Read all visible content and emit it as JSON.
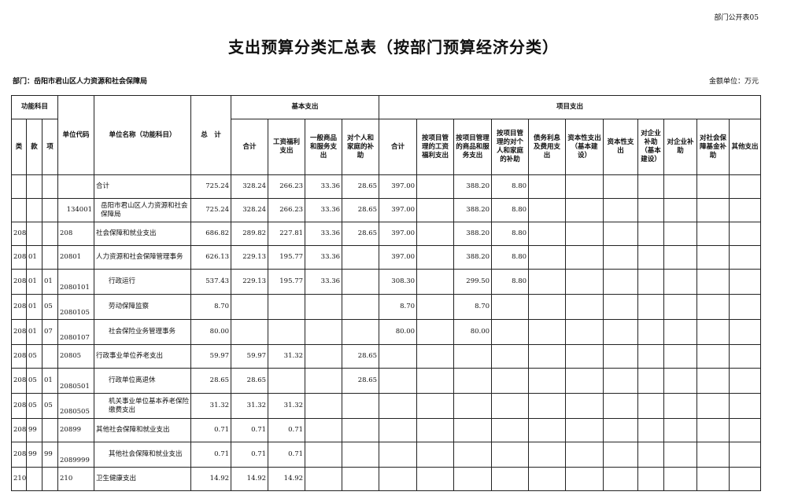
{
  "tag": "部门公开表05",
  "title": "支出预算分类汇总表（按部门预算经济分类）",
  "dept": "部门：岳阳市君山区人力资源和社会保障局",
  "unit": "金额单位：万元",
  "headers": {
    "func": "功能科目",
    "lei": "类",
    "kuan": "款",
    "xiang": "项",
    "code": "单位代码",
    "name": "单位名称（功能科目）",
    "total": "总　计",
    "basic": "基本支出",
    "project": "项目支出",
    "basic_cols": [
      "合计",
      "工资福利支出",
      "一般商品和服务支出",
      "对个人和家庭的补助"
    ],
    "project_cols": [
      "合计",
      "按项目管理的工资福利支出",
      "按项目管理的商品和服务支出",
      "按项目管理的对个人和家庭的补助",
      "债务利息及费用支出",
      "资本性支出（基本建设）",
      "资本性支出",
      "对企业补助（基本建设）",
      "对企业补助",
      "对社会保障基金补助",
      "其他支出"
    ]
  },
  "rows": [
    {
      "lei": "",
      "kuan": "",
      "xiang": "",
      "code": "",
      "name": "合计",
      "values": [
        "725.24",
        "328.24",
        "266.23",
        "33.36",
        "28.65",
        "397.00",
        "",
        "388.20",
        "8.80",
        "",
        "",
        "",
        "",
        "",
        "",
        ""
      ]
    },
    {
      "lei": "",
      "kuan": "",
      "xiang": "",
      "code": "134001",
      "name": "岳阳市君山区人力资源和社会保障局",
      "values": [
        "725.24",
        "328.24",
        "266.23",
        "33.36",
        "28.65",
        "397.00",
        "",
        "388.20",
        "8.80",
        "",
        "",
        "",
        "",
        "",
        "",
        ""
      ]
    },
    {
      "lei": "208",
      "kuan": "",
      "xiang": "",
      "code": "208",
      "name": "社会保障和就业支出",
      "values": [
        "686.82",
        "289.82",
        "227.81",
        "33.36",
        "28.65",
        "397.00",
        "",
        "388.20",
        "8.80",
        "",
        "",
        "",
        "",
        "",
        "",
        ""
      ]
    },
    {
      "lei": "208",
      "kuan": "01",
      "xiang": "",
      "code": "20801",
      "name": "人力资源和社会保障管理事务",
      "values": [
        "626.13",
        "229.13",
        "195.77",
        "33.36",
        "",
        "397.00",
        "",
        "388.20",
        "8.80",
        "",
        "",
        "",
        "",
        "",
        "",
        ""
      ]
    },
    {
      "lei": "208",
      "kuan": "01",
      "xiang": "01",
      "code": "2080101",
      "name": "行政运行",
      "values": [
        "537.43",
        "229.13",
        "195.77",
        "33.36",
        "",
        "308.30",
        "",
        "299.50",
        "8.80",
        "",
        "",
        "",
        "",
        "",
        "",
        ""
      ]
    },
    {
      "lei": "208",
      "kuan": "01",
      "xiang": "05",
      "code": "2080105",
      "name": "劳动保障监察",
      "values": [
        "8.70",
        "",
        "",
        "",
        "",
        "8.70",
        "",
        "8.70",
        "",
        "",
        "",
        "",
        "",
        "",
        "",
        ""
      ]
    },
    {
      "lei": "208",
      "kuan": "01",
      "xiang": "07",
      "code": "2080107",
      "name": "社会保险业务管理事务",
      "values": [
        "80.00",
        "",
        "",
        "",
        "",
        "80.00",
        "",
        "80.00",
        "",
        "",
        "",
        "",
        "",
        "",
        "",
        ""
      ]
    },
    {
      "lei": "208",
      "kuan": "05",
      "xiang": "",
      "code": "20805",
      "name": "行政事业单位养老支出",
      "values": [
        "59.97",
        "59.97",
        "31.32",
        "",
        "28.65",
        "",
        "",
        "",
        "",
        "",
        "",
        "",
        "",
        "",
        "",
        ""
      ]
    },
    {
      "lei": "208",
      "kuan": "05",
      "xiang": "01",
      "code": "2080501",
      "name": "行政单位离退休",
      "values": [
        "28.65",
        "28.65",
        "",
        "",
        "28.65",
        "",
        "",
        "",
        "",
        "",
        "",
        "",
        "",
        "",
        "",
        ""
      ]
    },
    {
      "lei": "208",
      "kuan": "05",
      "xiang": "05",
      "code": "2080505",
      "name": "机关事业单位基本养老保险缴费支出",
      "values": [
        "31.32",
        "31.32",
        "31.32",
        "",
        "",
        "",
        "",
        "",
        "",
        "",
        "",
        "",
        "",
        "",
        "",
        ""
      ]
    },
    {
      "lei": "208",
      "kuan": "99",
      "xiang": "",
      "code": "20899",
      "name": "其他社会保障和就业支出",
      "values": [
        "0.71",
        "0.71",
        "0.71",
        "",
        "",
        "",
        "",
        "",
        "",
        "",
        "",
        "",
        "",
        "",
        "",
        ""
      ]
    },
    {
      "lei": "208",
      "kuan": "99",
      "xiang": "99",
      "code": "2089999",
      "name": "其他社会保障和就业支出",
      "values": [
        "0.71",
        "0.71",
        "0.71",
        "",
        "",
        "",
        "",
        "",
        "",
        "",
        "",
        "",
        "",
        "",
        "",
        ""
      ]
    },
    {
      "lei": "210",
      "kuan": "",
      "xiang": "",
      "code": "210",
      "name": "卫生健康支出",
      "values": [
        "14.92",
        "14.92",
        "14.92",
        "",
        "",
        "",
        "",
        "",
        "",
        "",
        "",
        "",
        "",
        "",
        "",
        ""
      ]
    }
  ]
}
